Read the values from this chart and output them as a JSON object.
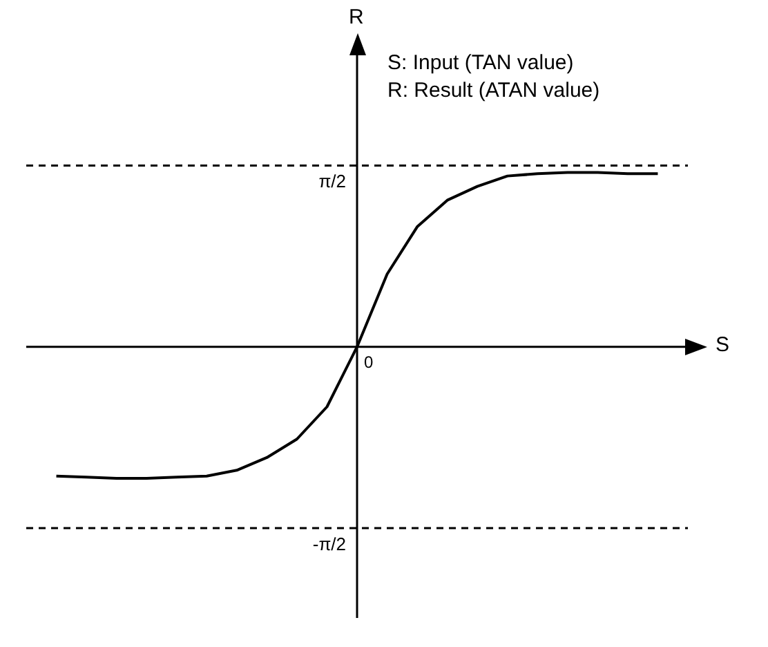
{
  "chart_data": {
    "type": "line",
    "xlabel": "S",
    "ylabel": "R",
    "annotations": [
      "S: Input (TAN value)",
      "R: Result (ATAN value)",
      "0"
    ],
    "categories": [
      null,
      null,
      null,
      null,
      null,
      null,
      null,
      null,
      null,
      null,
      null,
      null,
      null,
      null,
      null,
      null,
      null,
      null,
      null,
      null,
      null
    ],
    "series": [
      {
        "color": "#000000",
        "values": [
          -1.12,
          -1.13,
          -1.14,
          -1.14,
          -1.13,
          -1.12,
          -1.07,
          -0.96,
          -0.8,
          -0.52,
          0,
          0.63,
          1.04,
          1.27,
          1.39,
          1.48,
          1.5,
          1.51,
          1.51,
          1.5,
          1.5
        ]
      }
    ],
    "ylim": [
      -2.35,
      2.55
    ],
    "yticks": [
      {
        "value": 1.5708,
        "label": "π/2"
      },
      {
        "value": -1.5708,
        "label": "-π/2"
      }
    ],
    "ref_lines": [
      {
        "axis": "y",
        "value": 1.5708,
        "color": "#000000",
        "line_style": "dashed"
      },
      {
        "axis": "y",
        "value": -1.5708,
        "color": "#000000",
        "line_style": "dashed"
      }
    ],
    "marker": "none",
    "line_style": "solid"
  }
}
